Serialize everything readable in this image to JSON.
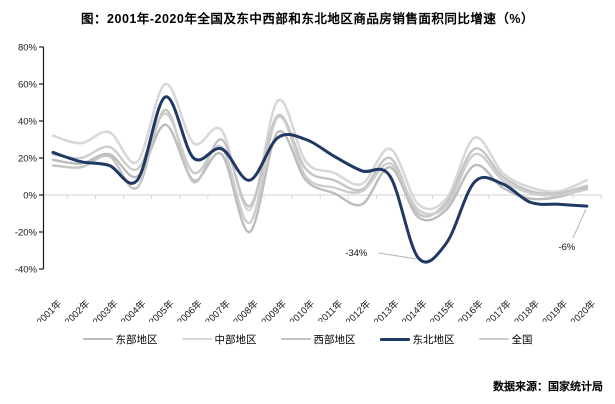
{
  "title": "图：2001年-2020年全国及东中西部和东北地区商品房销售面积同比增速（%）",
  "footer": "数据来源：国家统计局",
  "colors": {
    "axis": "#1a1a1a",
    "tick_label": "#1a1a1a",
    "zero_line": "#d9d9d9",
    "annotation_leader": "#b3b3b3",
    "accent_navy": "#1f3864"
  },
  "chart_data": {
    "type": "line",
    "title": "图：2001年-2020年全国及东中西部和东北地区商品房销售面积同比增速（%）",
    "xlabel": "",
    "ylabel": "",
    "ylim": [
      -40,
      80
    ],
    "y_ticks": [
      "80%",
      "60%",
      "40%",
      "20%",
      "0%",
      "-20%",
      "-40%"
    ],
    "y_tick_values": [
      80,
      60,
      40,
      20,
      0,
      -20,
      -40
    ],
    "grid": "zero-line-only",
    "smoothed": true,
    "legend_position": "bottom",
    "x": [
      "2001年",
      "2002年",
      "2003年",
      "2004年",
      "2005年",
      "2006年",
      "2007年",
      "2008年",
      "2009年",
      "2010年",
      "2011年",
      "2012年",
      "2013年",
      "2014年",
      "2015年",
      "2016年",
      "2017年",
      "2018年",
      "2019年",
      "2020年"
    ],
    "series": [
      {
        "name": "东部地区",
        "color": "#bcbcbc",
        "width": 2.4,
        "values": [
          19,
          17,
          22,
          10,
          38,
          8,
          22,
          -20,
          34,
          8,
          1,
          -5,
          15,
          -12,
          -8,
          16,
          4,
          -2,
          -1,
          4
        ]
      },
      {
        "name": "中部地区",
        "color": "#d8d8d8",
        "width": 2.6,
        "values": [
          32,
          28,
          34,
          18,
          60,
          28,
          35,
          -8,
          51,
          18,
          12,
          6,
          25,
          -5,
          -2,
          31,
          12,
          4,
          2,
          8
        ]
      },
      {
        "name": "西部地区",
        "color": "#c4c4c4",
        "width": 2.4,
        "values": [
          16,
          15,
          21,
          4,
          46,
          7,
          30,
          -6,
          43,
          14,
          8,
          3,
          20,
          -10,
          -4,
          25,
          10,
          2,
          1,
          5
        ]
      },
      {
        "name": "东北地区",
        "color": "#1f3864",
        "width": 3,
        "values": [
          23,
          18,
          16,
          8,
          53,
          20,
          25,
          8,
          31,
          30,
          21,
          13,
          10,
          -34,
          -26,
          7,
          6,
          -4,
          -5,
          -6
        ]
      },
      {
        "name": "全国",
        "color": "#cdcdcd",
        "width": 2.4,
        "values": [
          22,
          20,
          26,
          14,
          44,
          12,
          26,
          -15,
          42,
          10,
          4,
          2,
          17,
          -8,
          -6,
          22,
          8,
          1,
          0,
          3
        ]
      }
    ],
    "annotations": [
      {
        "text": "-34%",
        "series": "东北地区",
        "year": "2014年",
        "value": -34
      },
      {
        "text": "-6%",
        "series": "东北地区",
        "year": "2020年",
        "value": -6
      }
    ]
  }
}
